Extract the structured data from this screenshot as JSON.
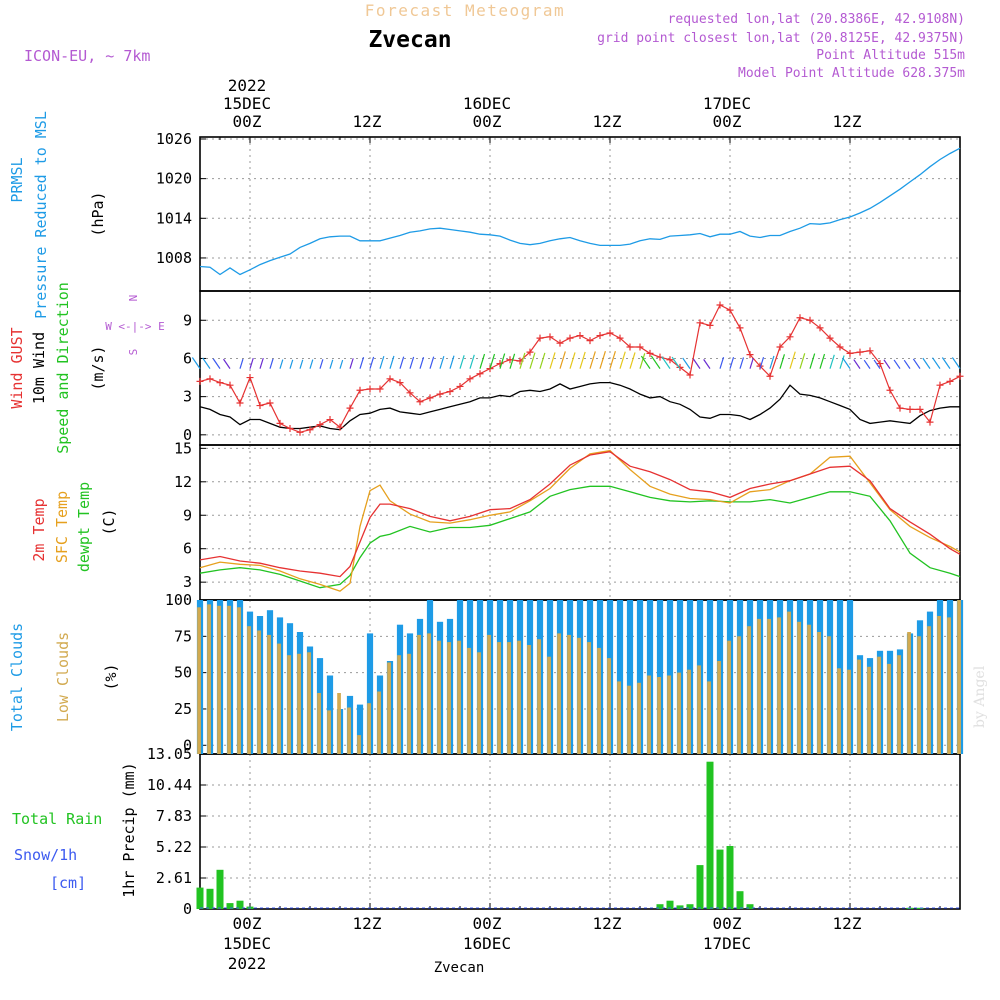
{
  "header": {
    "supertitle": "Forecast Meteogram",
    "location": "Zvecan",
    "model": "ICON-EU, ~ 7km",
    "requested": "requested lon,lat (20.8386E, 42.9108N)",
    "gridpoint": "grid point closest lon,lat (20.8125E, 42.9375N)",
    "point_alt": "Point Altitude 515m",
    "model_alt": "Model Point Altitude 628.375m",
    "footer": "Zvecan",
    "credit": "by Angel"
  },
  "colors": {
    "pressure": "#1e9be6",
    "gust": "#e63232",
    "wind": "#000000",
    "temp": "#e63232",
    "sfc": "#e6a01e",
    "dew": "#22c322",
    "cloud_total": "#1e9be6",
    "cloud_low": "#d2aa50",
    "precip": "#22c322",
    "title": "#f0c896",
    "meta": "#b45ad2"
  },
  "time_axis": {
    "top_labels": [
      {
        "t": 0,
        "lines": [
          "2022",
          "15DEC",
          "00Z"
        ]
      },
      {
        "t": 12,
        "lines": [
          "12Z"
        ]
      },
      {
        "t": 24,
        "lines": [
          "16DEC",
          "00Z"
        ]
      },
      {
        "t": 36,
        "lines": [
          "12Z"
        ]
      },
      {
        "t": 48,
        "lines": [
          "17DEC",
          "00Z"
        ]
      },
      {
        "t": 60,
        "lines": [
          "12Z"
        ]
      }
    ],
    "bottom_labels": [
      {
        "t": 0,
        "lines": [
          "00Z",
          "15DEC",
          "2022"
        ]
      },
      {
        "t": 12,
        "lines": [
          "12Z"
        ]
      },
      {
        "t": 24,
        "lines": [
          "00Z",
          "16DEC"
        ]
      },
      {
        "t": 36,
        "lines": [
          "12Z"
        ]
      },
      {
        "t": 48,
        "lines": [
          "00Z",
          "17DEC"
        ]
      },
      {
        "t": 60,
        "lines": [
          "12Z"
        ]
      }
    ],
    "range_hours": [
      -5,
      71
    ]
  },
  "chart_data": [
    {
      "type": "line",
      "name": "pressure",
      "ylabel_lines": [
        "PRMSL",
        "Pressure Reduced to MSL"
      ],
      "unit": "(hPa)",
      "yticks": [
        1008,
        1014,
        1020,
        1026
      ],
      "ylim": [
        1003,
        1026.3
      ],
      "x": [
        -5,
        -4,
        -3,
        -2,
        -1,
        0,
        1,
        2,
        3,
        4,
        5,
        6,
        7,
        8,
        9,
        10,
        11,
        12,
        13,
        14,
        15,
        16,
        17,
        18,
        19,
        20,
        21,
        22,
        23,
        24,
        25,
        26,
        27,
        28,
        29,
        30,
        31,
        32,
        33,
        34,
        35,
        36,
        37,
        38,
        39,
        40,
        41,
        42,
        43,
        44,
        45,
        46,
        47,
        48,
        49,
        50,
        51,
        52,
        53,
        54,
        55,
        56,
        57,
        58,
        59,
        60,
        61,
        62,
        63,
        64,
        65,
        66,
        67,
        68,
        69,
        70,
        71
      ],
      "y": [
        1006.7,
        1006.6,
        1005.5,
        1006.5,
        1005.5,
        1006.2,
        1007,
        1007.6,
        1008.1,
        1008.6,
        1009.6,
        1010.2,
        1010.9,
        1011.2,
        1011.3,
        1011.3,
        1010.6,
        1010.6,
        1010.6,
        1011,
        1011.4,
        1011.9,
        1012.1,
        1012.4,
        1012.5,
        1012.3,
        1012.1,
        1011.9,
        1011.6,
        1011.5,
        1011.3,
        1010.7,
        1010.2,
        1010,
        1010.2,
        1010.6,
        1010.9,
        1011.1,
        1010.6,
        1010.2,
        1009.9,
        1009.9,
        1009.9,
        1010.1,
        1010.6,
        1010.9,
        1010.8,
        1011.3,
        1011.4,
        1011.5,
        1011.7,
        1011.2,
        1011.6,
        1011.6,
        1012,
        1011.3,
        1011.1,
        1011.4,
        1011.4,
        1012,
        1012.5,
        1013.2,
        1013.1,
        1013.3,
        1013.8,
        1014.2,
        1014.8,
        1015.5,
        1016.4,
        1017.4,
        1018.4,
        1019.5,
        1020.6,
        1021.8,
        1022.9,
        1023.8,
        1024.6
      ]
    },
    {
      "type": "line",
      "name": "wind",
      "ylabel_lines": [
        "Wind GUST",
        "10m Wind",
        "Speed and Direction"
      ],
      "unit": "(m/s)",
      "compass": [
        "N",
        "W <-|-> E",
        "S"
      ],
      "yticks": [
        0,
        3,
        6,
        9
      ],
      "ylim": [
        -0.8,
        11.3
      ],
      "x": [
        -5,
        -4,
        -3,
        -2,
        -1,
        0,
        1,
        2,
        3,
        4,
        5,
        6,
        7,
        8,
        9,
        10,
        11,
        12,
        13,
        14,
        15,
        16,
        17,
        18,
        19,
        20,
        21,
        22,
        23,
        24,
        25,
        26,
        27,
        28,
        29,
        30,
        31,
        32,
        33,
        34,
        35,
        36,
        37,
        38,
        39,
        40,
        41,
        42,
        43,
        44,
        45,
        46,
        47,
        48,
        49,
        50,
        51,
        52,
        53,
        54,
        55,
        56,
        57,
        58,
        59,
        60,
        61,
        62,
        63,
        64,
        65,
        66,
        67,
        68,
        69,
        70,
        71
      ],
      "gust": [
        4.2,
        4.4,
        4.1,
        3.9,
        2.5,
        4.5,
        2.3,
        2.5,
        0.9,
        0.5,
        0.2,
        0.4,
        0.8,
        1.2,
        0.6,
        2.1,
        3.5,
        3.6,
        3.6,
        4.4,
        4.1,
        3.3,
        2.6,
        2.9,
        3.2,
        3.4,
        3.8,
        4.4,
        4.8,
        5.2,
        5.6,
        5.9,
        5.8,
        6.5,
        7.6,
        7.7,
        7.2,
        7.6,
        7.8,
        7.4,
        7.8,
        8,
        7.6,
        6.9,
        6.9,
        6.4,
        6.1,
        5.9,
        5.3,
        4.7,
        8.8,
        8.6,
        10.2,
        9.8,
        8.4,
        6.3,
        5.4,
        4.6,
        6.9,
        7.7,
        9.2,
        9,
        8.4,
        7.6,
        6.9,
        6.4,
        6.5,
        6.6,
        5.6,
        3.5,
        2.1,
        2,
        2,
        1,
        3.9,
        4.2,
        4.6
      ],
      "speed": [
        2.2,
        2,
        1.6,
        1.4,
        0.8,
        1.2,
        1.2,
        0.9,
        0.6,
        0.5,
        0.5,
        0.6,
        0.7,
        0.5,
        0.4,
        1.1,
        1.6,
        1.7,
        2,
        2.1,
        1.8,
        1.7,
        1.6,
        1.8,
        2,
        2.2,
        2.4,
        2.6,
        2.9,
        2.9,
        3.1,
        3,
        3.4,
        3.5,
        3.4,
        3.6,
        4,
        3.6,
        3.8,
        4,
        4.1,
        4.1,
        3.9,
        3.6,
        3.2,
        2.9,
        3,
        2.6,
        2.4,
        2,
        1.4,
        1.3,
        1.6,
        1.6,
        1.5,
        1.2,
        1.6,
        2.1,
        2.8,
        3.9,
        3.2,
        3.1,
        2.9,
        2.6,
        2.3,
        2,
        1.2,
        0.9,
        1,
        1.1,
        1,
        0.9,
        1.5,
        1.9,
        2.1,
        2.2,
        2.2
      ],
      "dir_arrows_y": 5.2
    },
    {
      "type": "line",
      "name": "temperature",
      "ylabel_lines": [
        "2m Temp",
        "SFC Temp",
        "dewpt Temp"
      ],
      "unit": "(C)",
      "yticks": [
        3,
        6,
        9,
        12,
        15
      ],
      "ylim": [
        1.4,
        15.3
      ],
      "x": [
        -5,
        -3,
        -1,
        1,
        3,
        5,
        7,
        9,
        10,
        11,
        12,
        13,
        14,
        16,
        18,
        20,
        22,
        24,
        26,
        28,
        30,
        32,
        34,
        36,
        38,
        40,
        42,
        44,
        46,
        48,
        50,
        52,
        54,
        56,
        58,
        60,
        62,
        64,
        66,
        68,
        70,
        71
      ],
      "t2m": [
        5,
        5.3,
        4.9,
        4.7,
        4.3,
        4,
        3.8,
        3.5,
        4.4,
        6.6,
        8.8,
        10,
        10,
        9.6,
        8.9,
        8.5,
        8.9,
        9.5,
        9.6,
        10.4,
        11.8,
        13.5,
        14.4,
        14.7,
        13.4,
        12.9,
        12.2,
        11.3,
        11.1,
        10.6,
        11.4,
        11.8,
        12.1,
        12.7,
        13.3,
        13.4,
        12.1,
        9.6,
        8.4,
        7.3,
        6,
        5.5
      ],
      "sfc": [
        4.3,
        4.8,
        4.6,
        4.5,
        4,
        3.3,
        2.8,
        2.2,
        2.9,
        8,
        11.2,
        11.7,
        10.3,
        9.1,
        8.4,
        8.3,
        8.6,
        9,
        9.3,
        10.3,
        11.4,
        13.2,
        14.5,
        14.8,
        13.1,
        11.6,
        10.9,
        10.5,
        10.4,
        10.1,
        11.1,
        11.3,
        12.1,
        12.7,
        14.2,
        14.3,
        11.9,
        9.5,
        8,
        7,
        6.2,
        5.7
      ],
      "dew": [
        3.8,
        4.1,
        4.3,
        4.1,
        3.7,
        3.1,
        2.5,
        2.8,
        3.6,
        5.2,
        6.5,
        7.1,
        7.3,
        8,
        7.5,
        7.9,
        7.9,
        8.1,
        8.7,
        9.3,
        10.7,
        11.3,
        11.6,
        11.6,
        11.1,
        10.6,
        10.3,
        10.2,
        10.3,
        10.2,
        10.2,
        10.4,
        10.1,
        10.6,
        11.1,
        11.1,
        10.7,
        8.5,
        5.6,
        4.3,
        3.8,
        3.5
      ]
    },
    {
      "type": "bar",
      "name": "clouds",
      "ylabel_lines": [
        "Total Clouds",
        "Low Clouds"
      ],
      "unit": "(%)",
      "yticks": [
        0,
        25,
        50,
        75,
        100
      ],
      "ylim": [
        -6,
        100
      ],
      "x": [
        -5,
        -4,
        -3,
        -2,
        -1,
        0,
        1,
        2,
        3,
        4,
        5,
        6,
        7,
        8,
        9,
        10,
        11,
        12,
        13,
        14,
        15,
        16,
        17,
        18,
        19,
        20,
        21,
        22,
        23,
        24,
        25,
        26,
        27,
        28,
        29,
        30,
        31,
        32,
        33,
        34,
        35,
        36,
        37,
        38,
        39,
        40,
        41,
        42,
        43,
        44,
        45,
        46,
        47,
        48,
        49,
        50,
        51,
        52,
        53,
        54,
        55,
        56,
        57,
        58,
        59,
        60,
        61,
        62,
        63,
        64,
        65,
        66,
        67,
        68,
        69,
        70,
        71
      ],
      "total": [
        100,
        100,
        100,
        100,
        100,
        92,
        89,
        93,
        88,
        84,
        78,
        68,
        60,
        48,
        25,
        34,
        28,
        77,
        48,
        58,
        83,
        77,
        87,
        100,
        85,
        87,
        100,
        100,
        100,
        100,
        100,
        100,
        100,
        100,
        100,
        100,
        100,
        100,
        100,
        100,
        100,
        100,
        100,
        100,
        100,
        100,
        100,
        100,
        100,
        100,
        100,
        100,
        100,
        100,
        100,
        100,
        100,
        100,
        100,
        100,
        100,
        100,
        100,
        100,
        100,
        100,
        62,
        60,
        65,
        65,
        66,
        77,
        86,
        92,
        100,
        100,
        100
      ],
      "low": [
        95,
        97,
        96,
        96,
        95,
        82,
        79,
        76,
        70,
        62,
        63,
        64,
        36,
        24,
        36,
        26,
        7,
        29,
        37,
        57,
        62,
        63,
        76,
        77,
        72,
        71,
        72,
        67,
        64,
        76,
        71,
        71,
        72,
        69,
        73,
        61,
        77,
        76,
        74,
        71,
        67,
        60,
        44,
        41,
        43,
        48,
        47,
        48,
        50,
        52,
        55,
        44,
        58,
        72,
        75,
        82,
        87,
        87,
        88,
        92,
        85,
        83,
        78,
        75,
        53,
        52,
        59,
        54,
        61,
        56,
        62,
        78,
        75,
        82,
        89,
        88,
        100
      ]
    },
    {
      "type": "bar",
      "name": "precipitation",
      "ylabel_lines": [
        "Total Rain",
        "Snow/1h",
        "[cm]"
      ],
      "unit": "1hr Precip (mm)",
      "yticks": [
        0,
        2.61,
        5.22,
        7.83,
        10.44,
        13.05
      ],
      "ylim": [
        0,
        13.05
      ],
      "x": [
        -5,
        -4,
        -3,
        -2,
        -1,
        0,
        1,
        2,
        3,
        4,
        5,
        6,
        7,
        8,
        9,
        10,
        11,
        12,
        13,
        14,
        15,
        16,
        17,
        18,
        19,
        20,
        21,
        22,
        23,
        24,
        25,
        26,
        27,
        28,
        29,
        30,
        31,
        32,
        33,
        34,
        35,
        36,
        37,
        38,
        39,
        40,
        41,
        42,
        43,
        44,
        45,
        46,
        47,
        48,
        49,
        50,
        51,
        52,
        53,
        54,
        55,
        56,
        57,
        58,
        59,
        60,
        61,
        62,
        63,
        64,
        65,
        66,
        67,
        68,
        69,
        70,
        71
      ],
      "rain": [
        1.8,
        1.7,
        3.3,
        0.5,
        0.7,
        0.2,
        0,
        0,
        0,
        0,
        0,
        0,
        0,
        0,
        0,
        0,
        0,
        0,
        0,
        0,
        0,
        0,
        0,
        0,
        0,
        0,
        0,
        0,
        0,
        0,
        0,
        0,
        0,
        0,
        0,
        0,
        0,
        0,
        0,
        0,
        0,
        0,
        0,
        0,
        0,
        0,
        0.4,
        0.7,
        0.3,
        0.4,
        3.7,
        12.4,
        5,
        5.3,
        1.5,
        0.4,
        0,
        0,
        0,
        0,
        0,
        0,
        0,
        0,
        0,
        0,
        0,
        0,
        0,
        0,
        0,
        0.1,
        0.1,
        0,
        0,
        0,
        0
      ],
      "snow": [
        0,
        0,
        0,
        0,
        0,
        0,
        0,
        0,
        0,
        0,
        0,
        0,
        0,
        0,
        0,
        0,
        0,
        0,
        0,
        0,
        0,
        0,
        0,
        0,
        0,
        0,
        0,
        0,
        0,
        0,
        0,
        0,
        0,
        0,
        0,
        0,
        0,
        0,
        0,
        0,
        0,
        0,
        0,
        0,
        0,
        0,
        0,
        0,
        0,
        0,
        0,
        0,
        0,
        0,
        0,
        0,
        0,
        0,
        0,
        0,
        0,
        0,
        0,
        0,
        0,
        0,
        0,
        0,
        0,
        0,
        0,
        0,
        0,
        0,
        0,
        0,
        0
      ]
    }
  ]
}
